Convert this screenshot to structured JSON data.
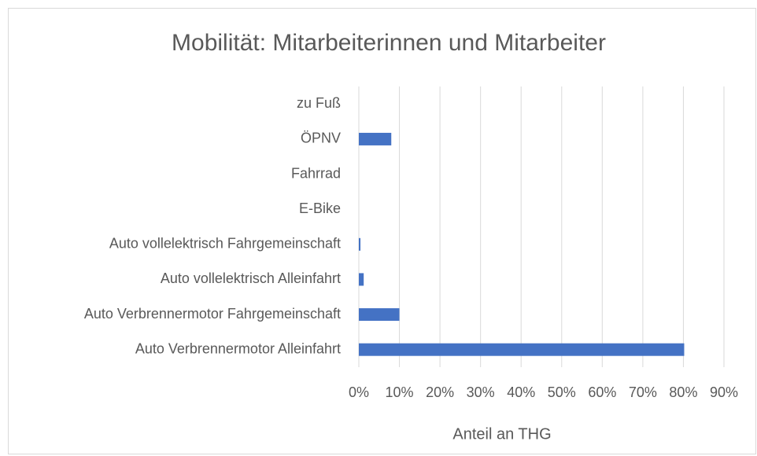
{
  "chart_data": {
    "type": "barh",
    "title": "Mobilität: Mitarbeiterinnen und Mitarbeiter",
    "categories": [
      "zu Fuß",
      "ÖPNV",
      "Fahrrad",
      "E-Bike",
      "Auto vollelektrisch Fahrgemeinschaft",
      "Auto vollelektrisch Alleinfahrt",
      "Auto Verbrennermotor Fahrgemeinschaft",
      "Auto Verbrennermotor Alleinfahrt"
    ],
    "values": [
      0,
      8,
      0,
      0,
      0.4,
      1.2,
      10,
      80.2
    ],
    "color": "#4472c4",
    "xlabel": "Anteil an THG",
    "xlim": [
      0,
      90
    ],
    "xticks": [
      {
        "value": 0,
        "label": "0%"
      },
      {
        "value": 10,
        "label": "10%"
      },
      {
        "value": 20,
        "label": "20%"
      },
      {
        "value": 30,
        "label": "30%"
      },
      {
        "value": 40,
        "label": "40%"
      },
      {
        "value": 50,
        "label": "50%"
      },
      {
        "value": 60,
        "label": "60%"
      },
      {
        "value": 70,
        "label": "70%"
      },
      {
        "value": 80,
        "label": "80%"
      },
      {
        "value": 90,
        "label": "90%"
      }
    ],
    "grid": true
  }
}
